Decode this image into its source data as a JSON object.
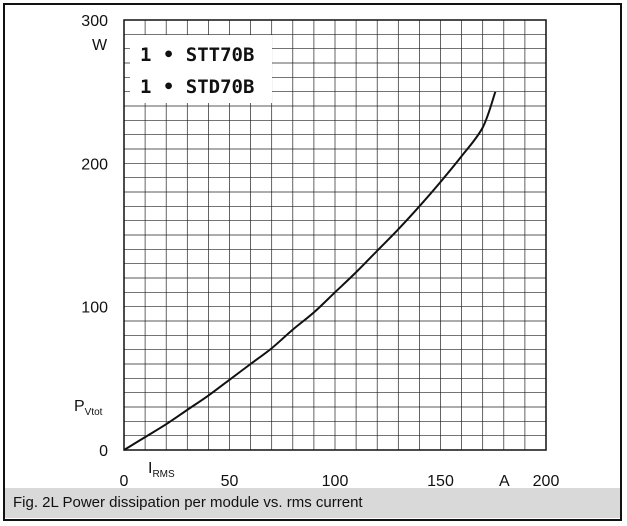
{
  "chart_data": {
    "type": "line",
    "title": "",
    "xlabel": "I_RMS",
    "x_unit": "A",
    "ylabel": "P_Vtot",
    "y_unit": "W",
    "xlim": [
      0,
      200
    ],
    "ylim": [
      0,
      300
    ],
    "x_ticks": [
      "0",
      "50",
      "100",
      "150",
      "200"
    ],
    "y_ticks": [
      "0",
      "100",
      "200",
      "300"
    ],
    "grid": true,
    "legend_position": "top-left",
    "legend": [
      "1 • STT70B",
      "1 • STD70B"
    ],
    "series": [
      {
        "x": [
          0,
          10,
          20,
          30,
          40,
          50,
          60,
          70,
          80,
          90,
          100,
          110,
          120,
          130,
          140,
          150,
          160,
          170,
          176
        ],
        "y": [
          0,
          9,
          18,
          28,
          38,
          49,
          60,
          71,
          84,
          96,
          110,
          124,
          139,
          154,
          170,
          187,
          205,
          225,
          250
        ]
      }
    ]
  },
  "caption": "Fig. 2L Power dissipation per module vs. rms current",
  "colors": {
    "line": "#111111",
    "grid": "#222222",
    "caption_bg": "#d9d9d9"
  }
}
